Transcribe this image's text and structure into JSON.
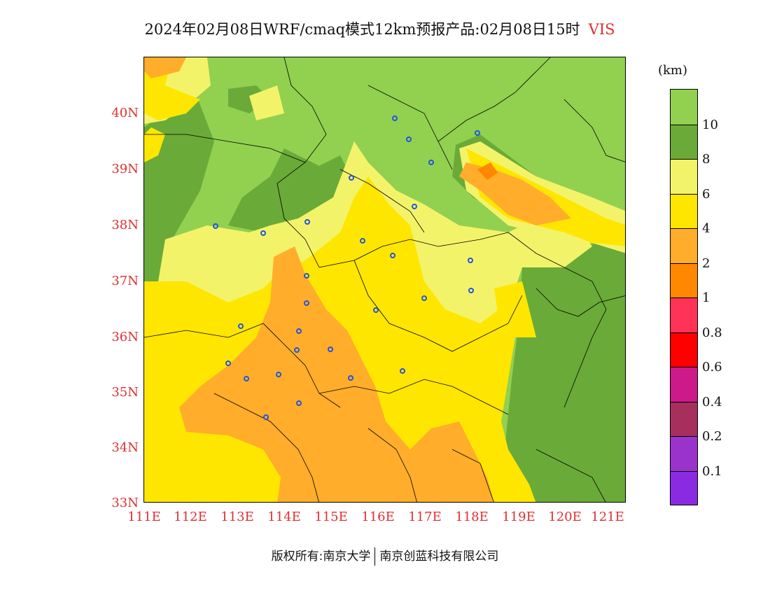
{
  "title": {
    "text": "2024年02月08日WRF/cmaq模式12km预报产品:02月08日15时",
    "variable": "VIS"
  },
  "map": {
    "lat_labels": [
      "40N",
      "39N",
      "38N",
      "37N",
      "36N",
      "35N",
      "34N",
      "33N"
    ],
    "lon_labels": [
      "111E",
      "112E",
      "113E",
      "114E",
      "115E",
      "116E",
      "117E",
      "118E",
      "119E",
      "120E",
      "121E"
    ],
    "lat_range": [
      33,
      41
    ],
    "lon_range": [
      111,
      121.3
    ],
    "colors": {
      "vis_gt_10": "#92d050",
      "vis_8_10": "#6aaa38",
      "vis_6_8": "#f3f36a",
      "vis_4_6": "#ffe600",
      "vis_2_4": "#ffad2a",
      "vis_1_2": "#ff8800"
    },
    "city_marker_color": "#2255dd"
  },
  "colorbar": {
    "unit": "(km)",
    "labels": [
      "10",
      "8",
      "6",
      "4",
      "2",
      "1",
      "0.8",
      "0.6",
      "0.4",
      "0.2",
      "0.1"
    ],
    "colors": [
      "#92d050",
      "#6aaa38",
      "#f3f36a",
      "#ffe600",
      "#ffad2a",
      "#ff8800",
      "#ff3355",
      "#ff0000",
      "#cc1a8a",
      "#a62f5e",
      "#9933cc",
      "#8a2be2"
    ]
  },
  "footer": {
    "left": "版权所有:南京大学",
    "right": "南京创蓝科技有限公司"
  }
}
